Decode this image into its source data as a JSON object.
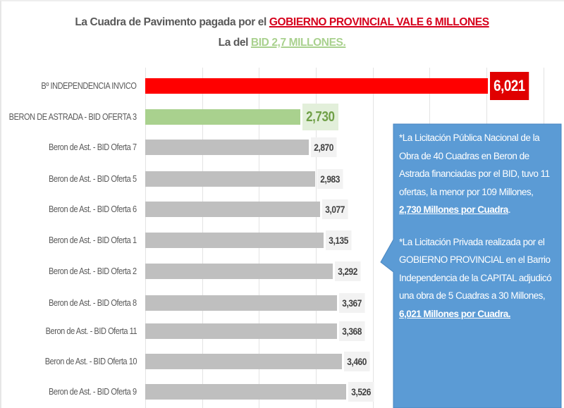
{
  "title": {
    "line1_prefix": "La Cuadra de Pavimento pagada por el ",
    "line1_highlight": "GOBIERNO PROVINCIAL VALE 6 MILLONES",
    "line2_prefix": "La del ",
    "line2_highlight": "BID 2,7 MILLONES."
  },
  "colors": {
    "highlight_red": "#ff0000",
    "highlight_green": "#a9d18e",
    "default_bar": "#bfbfbf",
    "callout": "#5b9bd5"
  },
  "chart_data": {
    "type": "bar",
    "orientation": "horizontal",
    "title": "La Cuadra de Pavimento pagada por el GOBIERNO PROVINCIAL VALE 6 MILLONES / La del BID 2,7 MILLONES.",
    "xlabel": "",
    "ylabel": "",
    "xlim": [
      0,
      7000
    ],
    "grid": true,
    "gridline_step": 1000,
    "legend": null,
    "categories": [
      "Bº INDEPENDENCIA INVICO",
      "BERON DE ASTRADA - BID OFERTA 3",
      "Beron de Ast. - BID Oferta 7",
      "Beron de Ast. - BID Oferta 5",
      "Beron de Ast. - BID Oferta 6",
      "Beron de Ast. - BID Oferta 1",
      "Beron de Ast. - BID Oferta 2",
      "Beron de Ast. - BID Oferta 8",
      "Beron de Ast. - BID Oferta 11",
      "Beron de Ast. - BID Oferta 10",
      "Beron de Ast. - BID Oferta 9"
    ],
    "values": [
      6021,
      2730,
      2870,
      2983,
      3077,
      3135,
      3292,
      3367,
      3368,
      3460,
      3526
    ],
    "value_labels": [
      "6,021",
      "2,730",
      "2,870",
      "2,983",
      "3,077",
      "3,135",
      "3,292",
      "3,367",
      "3,368",
      "3,460",
      "3,526"
    ],
    "bar_styles": [
      "red",
      "green",
      "gray",
      "gray",
      "gray",
      "gray",
      "gray",
      "gray",
      "gray",
      "gray",
      "gray"
    ]
  },
  "callout": {
    "para1_text": "*La Licitación Pública  Nacional de la Obra de 40 Cuadras en Beron de Astrada financiadas  por el BID, tuvo 11 ofertas, la menor por 109 Millones, ",
    "para1_emphasis": "2,730 Millones por Cuadra",
    "para1_end": ".",
    "para2_text": "*La Licitación Privada realizada por el GOBIERNO PROVINCIAL en el Barrio Independencia de la CAPITAL adjudicó  una obra de 5 Cuadras a 30 Millones, ",
    "para2_emphasis": "6,021 Millones por Cuadra."
  }
}
